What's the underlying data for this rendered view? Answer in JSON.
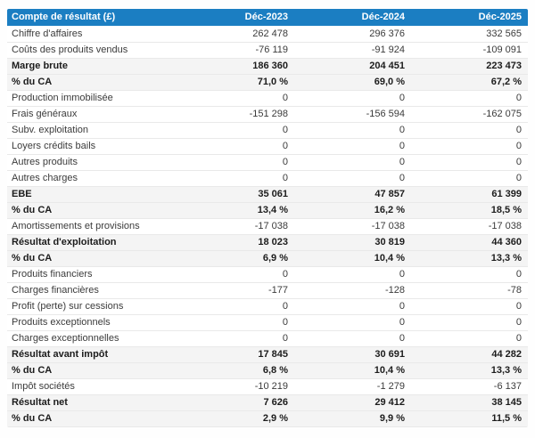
{
  "table": {
    "header": {
      "label": "Compte de résultat (£)",
      "columns": [
        "Déc-2023",
        "Déc-2024",
        "Déc-2025"
      ]
    },
    "rows": [
      {
        "label": "Chiffre d'affaires",
        "values": [
          "262 478",
          "296 376",
          "332 565"
        ],
        "bold": false
      },
      {
        "label": "Coûts des produits vendus",
        "values": [
          "-76 119",
          "-91 924",
          "-109 091"
        ],
        "bold": false
      },
      {
        "label": "Marge brute",
        "values": [
          "186 360",
          "204 451",
          "223 473"
        ],
        "bold": true
      },
      {
        "label": "% du CA",
        "values": [
          "71,0 %",
          "69,0 %",
          "67,2 %"
        ],
        "bold": true
      },
      {
        "label": "Production immobilisée",
        "values": [
          "0",
          "0",
          "0"
        ],
        "bold": false
      },
      {
        "label": "Frais généraux",
        "values": [
          "-151 298",
          "-156 594",
          "-162 075"
        ],
        "bold": false
      },
      {
        "label": "Subv. exploitation",
        "values": [
          "0",
          "0",
          "0"
        ],
        "bold": false
      },
      {
        "label": "Loyers crédits bails",
        "values": [
          "0",
          "0",
          "0"
        ],
        "bold": false
      },
      {
        "label": "Autres produits",
        "values": [
          "0",
          "0",
          "0"
        ],
        "bold": false
      },
      {
        "label": "Autres charges",
        "values": [
          "0",
          "0",
          "0"
        ],
        "bold": false
      },
      {
        "label": "EBE",
        "values": [
          "35 061",
          "47 857",
          "61 399"
        ],
        "bold": true
      },
      {
        "label": "% du CA",
        "values": [
          "13,4 %",
          "16,2 %",
          "18,5 %"
        ],
        "bold": true
      },
      {
        "label": "Amortissements et provisions",
        "values": [
          "-17 038",
          "-17 038",
          "-17 038"
        ],
        "bold": false
      },
      {
        "label": "Résultat d'exploitation",
        "values": [
          "18 023",
          "30 819",
          "44 360"
        ],
        "bold": true
      },
      {
        "label": "% du CA",
        "values": [
          "6,9 %",
          "10,4 %",
          "13,3 %"
        ],
        "bold": true
      },
      {
        "label": "Produits financiers",
        "values": [
          "0",
          "0",
          "0"
        ],
        "bold": false
      },
      {
        "label": "Charges financières",
        "values": [
          "-177",
          "-128",
          "-78"
        ],
        "bold": false
      },
      {
        "label": "Profit (perte) sur cessions",
        "values": [
          "0",
          "0",
          "0"
        ],
        "bold": false
      },
      {
        "label": "Produits exceptionnels",
        "values": [
          "0",
          "0",
          "0"
        ],
        "bold": false
      },
      {
        "label": "Charges exceptionnelles",
        "values": [
          "0",
          "0",
          "0"
        ],
        "bold": false
      },
      {
        "label": "Résultat avant impôt",
        "values": [
          "17 845",
          "30 691",
          "44 282"
        ],
        "bold": true
      },
      {
        "label": "% du CA",
        "values": [
          "6,8 %",
          "10,4 %",
          "13,3 %"
        ],
        "bold": true
      },
      {
        "label": "Impôt sociétés",
        "values": [
          "-10 219",
          "-1 279",
          "-6 137"
        ],
        "bold": false
      },
      {
        "label": "Résultat net",
        "values": [
          "7 626",
          "29 412",
          "38 145"
        ],
        "bold": true
      },
      {
        "label": "% du CA",
        "values": [
          "2,9 %",
          "9,9 %",
          "11,5 %"
        ],
        "bold": true
      }
    ],
    "colors": {
      "header_bg": "#1b7ec2",
      "header_text": "#ffffff",
      "stripe_bg": "#f4f4f4",
      "row_border": "#e9e9e9",
      "text": "#3b3b3b",
      "bold_text": "#1c1c1c"
    }
  }
}
